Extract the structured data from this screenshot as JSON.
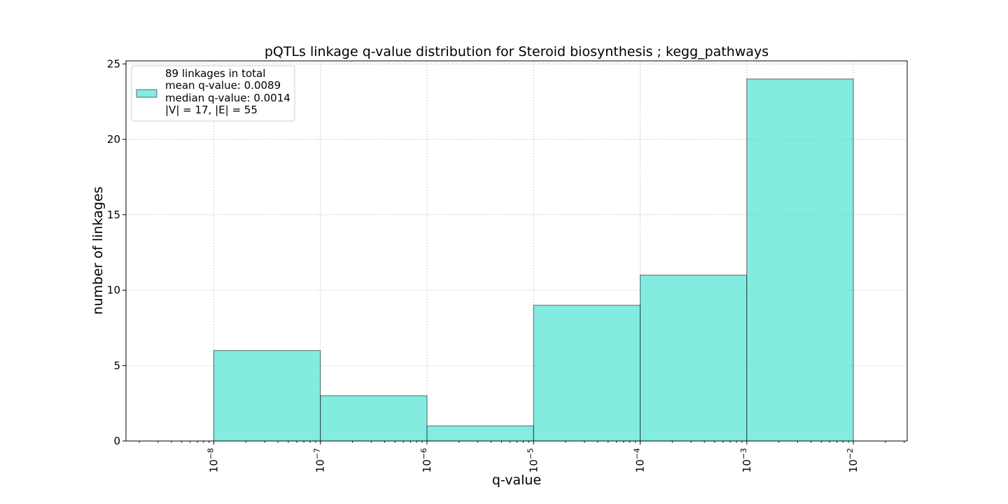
{
  "chart_data": {
    "type": "bar",
    "title": "pQTLs linkage q-value distribution for Steroid biosynthesis ; kegg_pathways",
    "xlabel": "q-value",
    "ylabel": "number of linkages",
    "x_scale": "log",
    "xlim": [
      1.5e-09,
      0.032
    ],
    "ylim": [
      0,
      25.2
    ],
    "grid": true,
    "bar_color": "#40e0d0",
    "bins": [
      {
        "left": 1e-08,
        "right": 1e-07,
        "count": 6
      },
      {
        "left": 1e-07,
        "right": 1e-06,
        "count": 3
      },
      {
        "left": 1e-06,
        "right": 1e-05,
        "count": 1
      },
      {
        "left": 1e-05,
        "right": 0.0001,
        "count": 9
      },
      {
        "left": 0.0001,
        "right": 0.001,
        "count": 11
      },
      {
        "left": 0.001,
        "right": 0.01,
        "count": 24
      }
    ],
    "x_ticks": [
      {
        "value": 1e-08,
        "base": "10",
        "exp": "−8"
      },
      {
        "value": 1e-07,
        "base": "10",
        "exp": "−7"
      },
      {
        "value": 1e-06,
        "base": "10",
        "exp": "−6"
      },
      {
        "value": 1e-05,
        "base": "10",
        "exp": "−5"
      },
      {
        "value": 0.0001,
        "base": "10",
        "exp": "−4"
      },
      {
        "value": 0.001,
        "base": "10",
        "exp": "−3"
      },
      {
        "value": 0.01,
        "base": "10",
        "exp": "−2"
      }
    ],
    "y_ticks": [
      0,
      5,
      10,
      15,
      20,
      25
    ],
    "legend": {
      "placement": "top-left",
      "lines": [
        "89 linkages in total",
        "mean q-value: 0.0089",
        "median q-value: 0.0014",
        "|V| = 17, |E| = 55"
      ]
    }
  }
}
